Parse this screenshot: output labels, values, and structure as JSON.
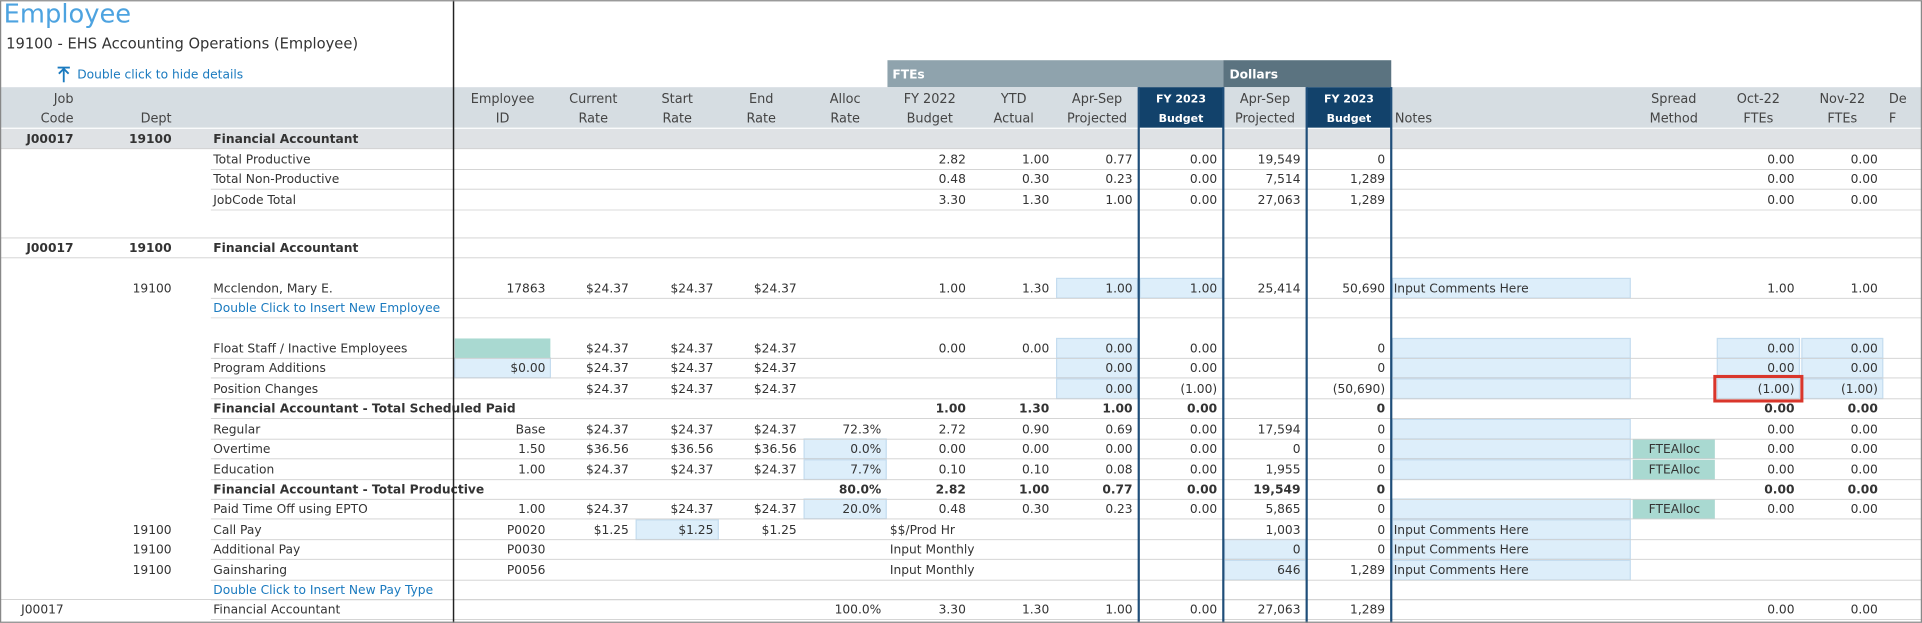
{
  "header": {
    "title": "Employee",
    "subtitle": "19100 - EHS Accounting Operations (Employee)",
    "toggle": "Double click to hide details"
  },
  "group_headers": {
    "ftes": "FTEs",
    "dollars": "Dollars"
  },
  "columns": {
    "job": [
      "Job",
      "Code"
    ],
    "dept": [
      "Dept"
    ],
    "empid": [
      "Employee",
      "ID"
    ],
    "cur": [
      "Current",
      "Rate"
    ],
    "start": [
      "Start",
      "Rate"
    ],
    "end": [
      "End",
      "Rate"
    ],
    "alloc": [
      "Alloc",
      "Rate"
    ],
    "fy22": [
      "FY 2022",
      "Budget"
    ],
    "ytd": [
      "YTD",
      "Actual"
    ],
    "proj": [
      "Apr-Sep",
      "Projected"
    ],
    "fy23": [
      "FY 2023",
      "Budget"
    ],
    "dproj": [
      "Apr-Sep",
      "Projected"
    ],
    "dfy23": [
      "FY 2023",
      "Budget"
    ],
    "notes": [
      "Notes"
    ],
    "spread": [
      "Spread",
      "Method"
    ],
    "oct": [
      "Oct-22",
      "FTEs"
    ],
    "nov": [
      "Nov-22",
      "FTEs"
    ],
    "dec": [
      "De",
      "F"
    ]
  },
  "rows": [
    {
      "job": "J00017",
      "dept": "19100",
      "desc": "Financial Accountant"
    },
    {
      "desc": "Total Productive",
      "fy22": "2.82",
      "ytd": "1.00",
      "proj": "0.77",
      "fy23": "0.00",
      "dproj": "19,549",
      "dfy23": "0",
      "oct": "0.00",
      "nov": "0.00"
    },
    {
      "desc": "Total Non-Productive",
      "fy22": "0.48",
      "ytd": "0.30",
      "proj": "0.23",
      "fy23": "0.00",
      "dproj": "7,514",
      "dfy23": "1,289",
      "oct": "0.00",
      "nov": "0.00"
    },
    {
      "desc": "JobCode Total",
      "fy22": "3.30",
      "ytd": "1.30",
      "proj": "1.00",
      "fy23": "0.00",
      "dproj": "27,063",
      "dfy23": "1,289",
      "oct": "0.00",
      "nov": "0.00"
    },
    {
      "job": "J00017",
      "dept": "19100",
      "desc": "Financial Accountant"
    },
    {
      "dept": "19100",
      "desc": "Mcclendon, Mary E.",
      "empid": "17863",
      "cur": "$24.37",
      "start": "$24.37",
      "end": "$24.37",
      "fy22": "1.00",
      "ytd": "1.30",
      "proj": "1.00",
      "fy23": "1.00",
      "dproj": "25,414",
      "dfy23": "50,690",
      "notes": "Input Comments Here",
      "oct": "1.00",
      "nov": "1.00"
    },
    {
      "desc": "Double Click to Insert New Employee"
    },
    {
      "desc": "Float Staff / Inactive Employees",
      "cur": "$24.37",
      "start": "$24.37",
      "end": "$24.37",
      "fy22": "0.00",
      "ytd": "0.00",
      "proj": "0.00",
      "fy23": "0.00",
      "dfy23": "0",
      "oct": "0.00",
      "nov": "0.00"
    },
    {
      "desc": "Program Additions",
      "empid": "$0.00",
      "cur": "$24.37",
      "start": "$24.37",
      "end": "$24.37",
      "proj": "0.00",
      "fy23": "0.00",
      "dfy23": "0",
      "oct": "0.00",
      "nov": "0.00"
    },
    {
      "desc": "Position Changes",
      "cur": "$24.37",
      "start": "$24.37",
      "end": "$24.37",
      "proj": "0.00",
      "fy23": "(1.00)",
      "dfy23": "(50,690)",
      "oct": "(1.00)",
      "nov": "(1.00)"
    },
    {
      "desc": "Financial Accountant - Total Scheduled Paid",
      "fy22": "1.00",
      "ytd": "1.30",
      "proj": "1.00",
      "fy23": "0.00",
      "dfy23": "0",
      "oct": "0.00",
      "nov": "0.00"
    },
    {
      "desc": "Regular",
      "empid": "Base",
      "cur": "$24.37",
      "start": "$24.37",
      "end": "$24.37",
      "alloc": "72.3%",
      "fy22": "2.72",
      "ytd": "0.90",
      "proj": "0.69",
      "fy23": "0.00",
      "dproj": "17,594",
      "dfy23": "0",
      "oct": "0.00",
      "nov": "0.00"
    },
    {
      "desc": "Overtime",
      "empid": "1.50",
      "cur": "$36.56",
      "start": "$36.56",
      "end": "$36.56",
      "alloc": "0.0%",
      "fy22": "0.00",
      "ytd": "0.00",
      "proj": "0.00",
      "fy23": "0.00",
      "dproj": "0",
      "dfy23": "0",
      "spread": "FTEAlloc",
      "oct": "0.00",
      "nov": "0.00"
    },
    {
      "desc": "Education",
      "empid": "1.00",
      "cur": "$24.37",
      "start": "$24.37",
      "end": "$24.37",
      "alloc": "7.7%",
      "fy22": "0.10",
      "ytd": "0.10",
      "proj": "0.08",
      "fy23": "0.00",
      "dproj": "1,955",
      "dfy23": "0",
      "spread": "FTEAlloc",
      "oct": "0.00",
      "nov": "0.00"
    },
    {
      "desc": "Financial Accountant - Total Productive",
      "alloc": "80.0%",
      "fy22": "2.82",
      "ytd": "1.00",
      "proj": "0.77",
      "fy23": "0.00",
      "dproj": "19,549",
      "dfy23": "0",
      "oct": "0.00",
      "nov": "0.00"
    },
    {
      "desc": "Paid Time Off using EPTO",
      "empid": "1.00",
      "cur": "$24.37",
      "start": "$24.37",
      "end": "$24.37",
      "alloc": "20.0%",
      "fy22": "0.48",
      "ytd": "0.30",
      "proj": "0.23",
      "fy23": "0.00",
      "dproj": "5,865",
      "dfy23": "0",
      "spread": "FTEAlloc",
      "oct": "0.00",
      "nov": "0.00"
    },
    {
      "dept": "19100",
      "desc": "Call Pay",
      "empid": "P0020",
      "cur": "$1.25",
      "start": "$1.25",
      "end": "$1.25",
      "fy22": "$$/Prod Hr",
      "dproj": "1,003",
      "dfy23": "0",
      "notes": "Input Comments Here"
    },
    {
      "dept": "19100",
      "desc": "Additional Pay",
      "empid": "P0030",
      "fy22": "Input Monthly",
      "dproj": "0",
      "dfy23": "0",
      "notes": "Input Comments Here"
    },
    {
      "dept": "19100",
      "desc": "Gainsharing",
      "empid": "P0056",
      "fy22": "Input Monthly",
      "dproj": "646",
      "dfy23": "1,289",
      "notes": "Input Comments Here"
    },
    {
      "desc": "Double Click to Insert New Pay Type"
    },
    {
      "job": "J00017",
      "desc": "Financial Accountant",
      "alloc": "100.0%",
      "fy22": "3.30",
      "ytd": "1.30",
      "proj": "1.00",
      "fy23": "0.00",
      "dproj": "27,063",
      "dfy23": "1,289",
      "oct": "0.00",
      "nov": "0.00"
    }
  ]
}
